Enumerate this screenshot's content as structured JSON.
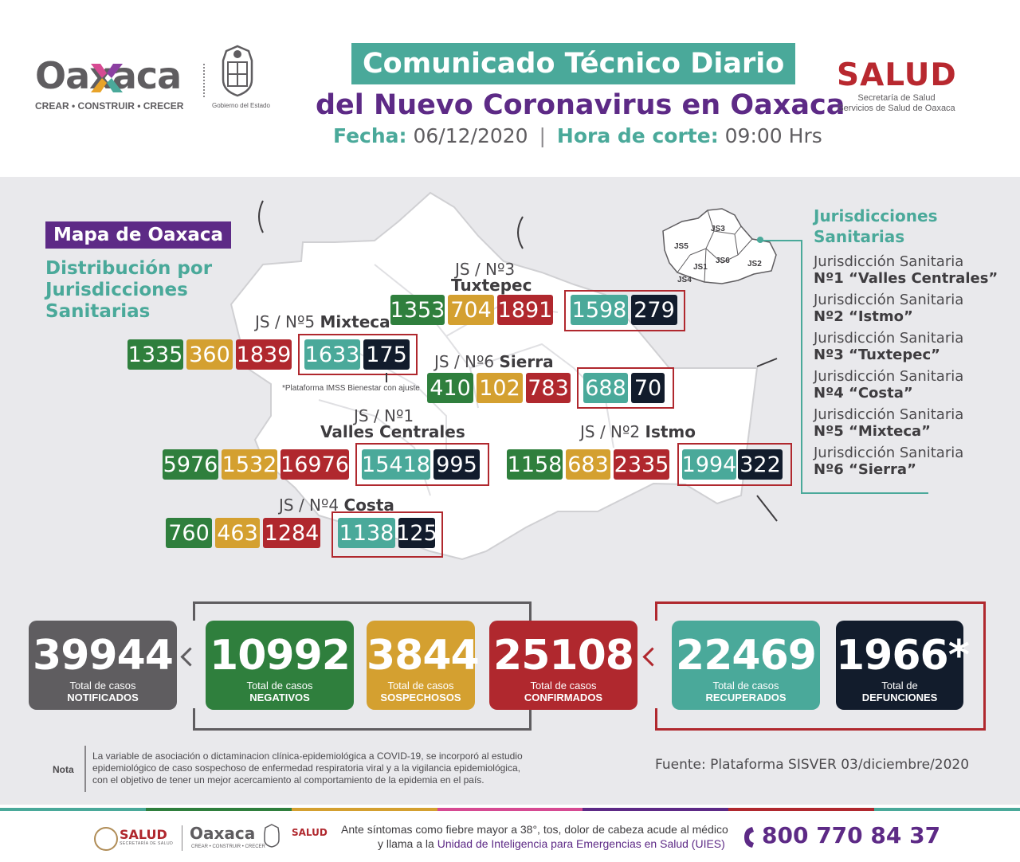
{
  "header": {
    "logo_word": "Oaxaca",
    "logo_tagline": "CREAR • CONSTRUIR • CRECER",
    "gov_label": "Gobierno del Estado",
    "title": "Comunicado Técnico Diario",
    "subtitle": "del Nuevo Coronavirus en Oaxaca",
    "fecha_label": "Fecha:",
    "fecha_value": "06/12/2020",
    "hora_label": "Hora de corte:",
    "hora_value": "09:00 Hrs",
    "salud_word": "SALUD",
    "salud_line1": "Secretaría de Salud",
    "salud_line2": "Servicios de Salud de Oaxaca"
  },
  "map_section": {
    "tag": "Mapa de Oaxaca",
    "heading_l1": "Distribución por",
    "heading_l2": "Jurisdicciones",
    "heading_l3": "Sanitarias",
    "footnote": "*Plataforma IMSS Bienestar con ajuste"
  },
  "jurisdictions": {
    "tuxtepec": {
      "label_a": "JS / Nº3",
      "label_b": "Tuxtepec",
      "negativos": "1353",
      "sospechosos": "704",
      "confirmados": "1891",
      "recuperados": "1598",
      "defunciones": "279"
    },
    "mixteca": {
      "label_a": "JS / Nº5",
      "label_b": "Mixteca",
      "negativos": "1335",
      "sospechosos": "360",
      "confirmados": "1839",
      "recuperados": "1633",
      "defunciones": "175"
    },
    "sierra": {
      "label_a": "JS / Nº6",
      "label_b": "Sierra",
      "negativos": "410",
      "sospechosos": "102",
      "confirmados": "783",
      "recuperados": "688",
      "defunciones": "70"
    },
    "valles": {
      "label_a": "JS / Nº1",
      "label_b": "Valles Centrales",
      "negativos": "5976",
      "sospechosos": "1532",
      "confirmados": "16976",
      "recuperados": "15418",
      "defunciones": "995"
    },
    "istmo": {
      "label_a": "JS / Nº2",
      "label_b": "Istmo",
      "negativos": "1158",
      "sospechosos": "683",
      "confirmados": "2335",
      "recuperados": "1994",
      "defunciones": "322"
    },
    "costa": {
      "label_a": "JS / Nº4",
      "label_b": "Costa",
      "negativos": "760",
      "sospechosos": "463",
      "confirmados": "1284",
      "recuperados": "1138",
      "defunciones": "125"
    }
  },
  "legend": {
    "title_l1": "Jurisdicciones",
    "title_l2": "Sanitarias",
    "mini_map_labels": [
      "JS3",
      "JS5",
      "JS6",
      "JS1",
      "JS2",
      "JS4"
    ],
    "items": [
      {
        "line1": "Jurisdicción Sanitaria",
        "line2": "Nº1 “Valles Centrales”"
      },
      {
        "line1": "Jurisdicción Sanitaria",
        "line2": "Nº2 “Istmo”"
      },
      {
        "line1": "Jurisdicción Sanitaria",
        "line2": "Nº3 “Tuxtepec”"
      },
      {
        "line1": "Jurisdicción Sanitaria",
        "line2": "Nº4 “Costa”"
      },
      {
        "line1": "Jurisdicción Sanitaria",
        "line2": "Nº5 “Mixteca”"
      },
      {
        "line1": "Jurisdicción Sanitaria",
        "line2": "Nº6 “Sierra”"
      }
    ]
  },
  "totals": {
    "notificados": {
      "value": "39944",
      "cap1": "Total de casos",
      "cap2": "NOTIFICADOS"
    },
    "negativos": {
      "value": "10992",
      "cap1": "Total de casos",
      "cap2": "NEGATIVOS"
    },
    "sospechosos": {
      "value": "3844",
      "cap1": "Total de casos",
      "cap2": "SOSPECHOSOS"
    },
    "confirmados": {
      "value": "25108",
      "cap1": "Total de casos",
      "cap2": "CONFIRMADOS"
    },
    "recuperados": {
      "value": "22469",
      "cap1": "Total de casos",
      "cap2": "RECUPERADOS"
    },
    "defunciones": {
      "value": "1966*",
      "cap1": "Total de",
      "cap2": "DEFUNCIONES"
    }
  },
  "note": {
    "label": "Nota",
    "line1": "La variable de asociación o dictaminacion clínica-epidemiológica a COVID-19, se incorporó al estudio",
    "line2": "epidemiológico de caso sospechoso de enfermedad respiratoria viral y a la vigilancia epidemiológica,",
    "line3": "con el objetivo de tener un mejor acercamiento al comportamiento de la epidemia en el país.",
    "source": "Fuente: Plataforma SISVER 03/diciembre/2020"
  },
  "footer": {
    "salud_small": "SALUD",
    "salud_small_sub": "SECRETARÍA DE SALUD",
    "oaxaca_small": "Oaxaca",
    "oaxaca_small_sub": "CREAR • CONSTRUIR • CRECER",
    "salud_small2": "SALUD",
    "msg_line1": "Ante síntomas como fiebre mayor a 38°, tos, dolor de cabeza acude al médico",
    "msg_line2a": "y llama a la ",
    "msg_line2b": "Unidad de Inteligencia para Emergencias en Salud (UIES)",
    "phone": "800 770 84 37"
  },
  "colors": {
    "teal": "#4aa99a",
    "purple": "#5d2a86",
    "green": "#2f7f3d",
    "yellow": "#d4a030",
    "red": "#b0282e",
    "navy": "#121c2c",
    "gray": "#5f5d60"
  }
}
